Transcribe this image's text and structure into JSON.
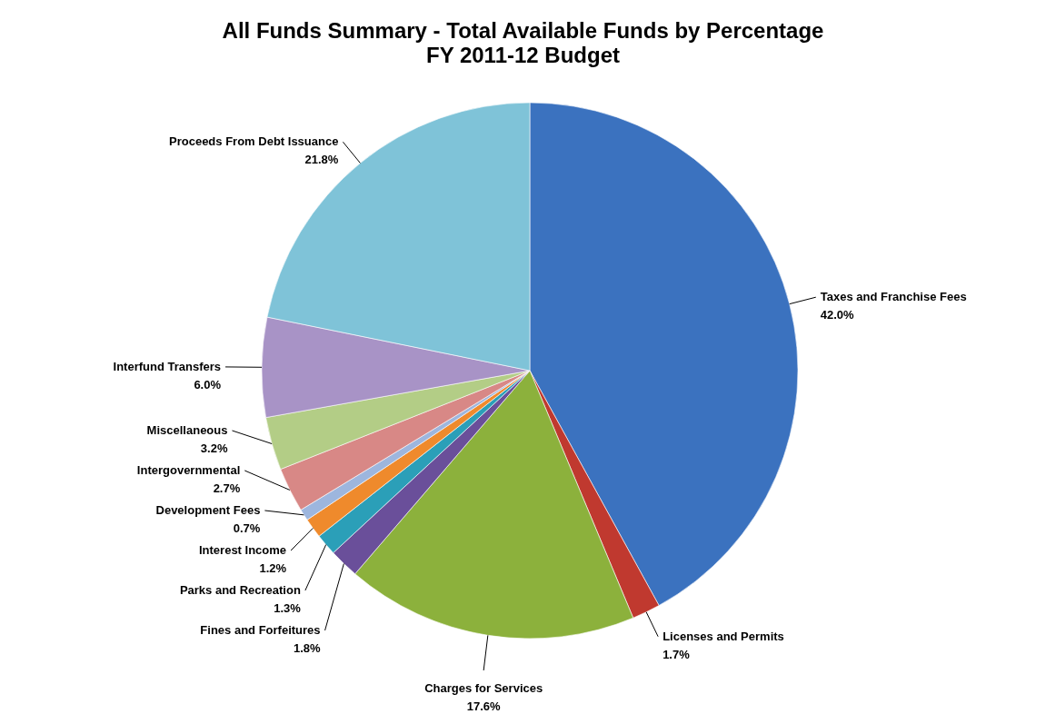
{
  "chart_data": {
    "type": "pie",
    "title": "All Funds Summary - Total Available Funds by Percentage",
    "subtitle": "FY 2011-12 Budget",
    "categories": [
      "Taxes and Franchise Fees",
      "Licenses and Permits",
      "Charges for Services",
      "Fines and Forfeitures",
      "Parks and Recreation",
      "Interest Income",
      "Development Fees",
      "Intergovernmental",
      "Miscellaneous",
      "Interfund Transfers",
      "Proceeds From Debt Issuance"
    ],
    "values": [
      42.0,
      1.7,
      17.6,
      1.8,
      1.3,
      1.2,
      0.7,
      2.7,
      3.2,
      6.0,
      21.8
    ],
    "value_labels": [
      "42.0%",
      "1.7%",
      "17.6%",
      "1.8%",
      "1.3%",
      "1.2%",
      "0.7%",
      "2.7%",
      "3.2%",
      "6.0%",
      "21.8%"
    ],
    "colors": [
      "#3b72bf",
      "#c0392f",
      "#8cb13c",
      "#6a4f9a",
      "#2b9fb8",
      "#ef8a2c",
      "#9db6de",
      "#d88886",
      "#b3cd86",
      "#a893c6",
      "#7fc3d8"
    ],
    "legend": false
  }
}
